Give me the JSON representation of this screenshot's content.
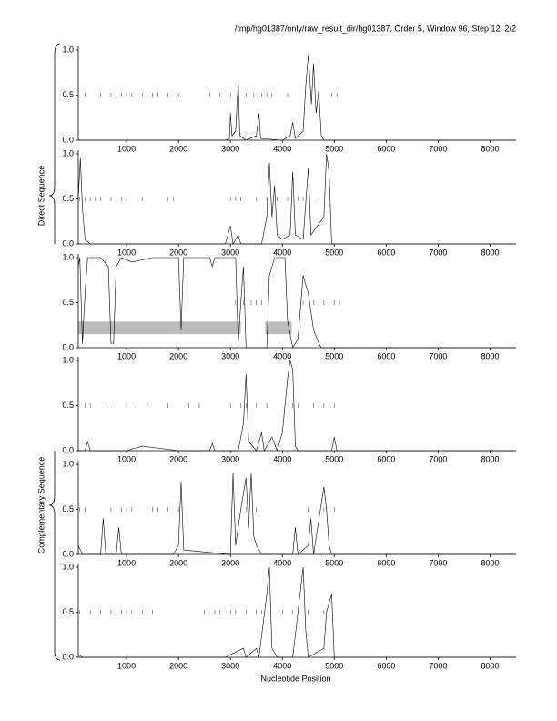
{
  "header": "/tmp/hg01387/only/raw_result_dir/hg01387, Order 5, Window 96, Step 12, 2/2",
  "groups": [
    {
      "label": "Direct Sequence"
    },
    {
      "label": "Complementary Sequence"
    }
  ],
  "x_label": "Nucleotide Position",
  "chart_data": [
    {
      "type": "line",
      "color": "#000000",
      "xlim": [
        70,
        8500
      ],
      "ylim": [
        0,
        1
      ],
      "xticks": [
        1000,
        2000,
        3000,
        4000,
        5000,
        6000,
        7000,
        8000
      ],
      "yticks": [
        {
          "value": 0,
          "label": "0.0"
        },
        {
          "value": 0.5,
          "label": "0.5"
        },
        {
          "value": 1,
          "label": "1.0"
        }
      ],
      "x": [
        70,
        500,
        1000,
        2000,
        2900,
        2980,
        3000,
        3030,
        3100,
        3150,
        3180,
        3300,
        3500,
        3550,
        3580,
        4000,
        4150,
        4200,
        4250,
        4400,
        4450,
        4500,
        4560,
        4600,
        4650,
        4700,
        4750,
        4800,
        5000,
        8500
      ],
      "values": [
        0,
        0,
        0,
        0,
        0,
        0.02,
        0.3,
        0.05,
        0.1,
        0.65,
        0.05,
        0,
        0.05,
        0.3,
        0.02,
        0,
        0.05,
        0.2,
        0.02,
        0.1,
        0.6,
        0.95,
        0.4,
        0.85,
        0.3,
        0.55,
        0.05,
        0,
        0,
        0
      ],
      "codons": [
        70,
        200,
        500,
        700,
        800,
        900,
        1000,
        1100,
        1300,
        1500,
        1600,
        1800,
        2000,
        2600,
        2800,
        3000,
        3300,
        3450,
        3600,
        3700,
        3800,
        4100,
        4950,
        5050
      ]
    },
    {
      "type": "line",
      "color": "#000000",
      "xlim": [
        70,
        8500
      ],
      "ylim": [
        0,
        1
      ],
      "xticks": [
        1000,
        2000,
        3000,
        4000,
        5000,
        6000,
        7000,
        8000
      ],
      "yticks": [
        {
          "value": 0,
          "label": "0.0"
        },
        {
          "value": 0.5,
          "label": "0.5"
        },
        {
          "value": 1,
          "label": "1.0"
        }
      ],
      "x": [
        70,
        110,
        150,
        200,
        300,
        1000,
        2900,
        3000,
        3050,
        3150,
        3200,
        3600,
        3700,
        3750,
        3800,
        3850,
        3900,
        4000,
        4150,
        4200,
        4250,
        4400,
        4500,
        4550,
        4800,
        4850,
        4900,
        4950,
        8500
      ],
      "values": [
        0.5,
        0.95,
        0.4,
        0.05,
        0,
        0,
        0,
        0.2,
        0,
        0.1,
        0,
        0,
        0.3,
        0.9,
        0.3,
        0.65,
        0.1,
        0.05,
        0.1,
        0.8,
        0.1,
        0.05,
        0.85,
        0.1,
        0.3,
        1.0,
        0.8,
        0,
        0
      ],
      "codons": [
        100,
        200,
        300,
        400,
        500,
        700,
        900,
        1000,
        1300,
        1800,
        1900,
        3000,
        3100,
        3200,
        3500,
        3700,
        3900,
        4100,
        4300,
        4400,
        4700
      ]
    },
    {
      "type": "line",
      "color": "#000000",
      "xlim": [
        70,
        8500
      ],
      "ylim": [
        0,
        1
      ],
      "xticks": [
        1000,
        2000,
        3000,
        4000,
        5000,
        6000,
        7000,
        8000
      ],
      "yticks": [
        {
          "value": 0,
          "label": "0.0"
        },
        {
          "value": 0.5,
          "label": "0.5"
        },
        {
          "value": 1,
          "label": "1.0"
        }
      ],
      "x": [
        70,
        100,
        150,
        200,
        250,
        500,
        650,
        700,
        750,
        800,
        900,
        1100,
        1500,
        2000,
        2050,
        2100,
        2600,
        2650,
        2700,
        3100,
        3150,
        3200,
        3250,
        3300,
        3700,
        3750,
        3850,
        4050,
        4100,
        4200,
        4300,
        4400,
        4500,
        4600,
        4700,
        4750,
        8500
      ],
      "values": [
        0.9,
        1.0,
        0.05,
        0.6,
        1.0,
        1.0,
        0.9,
        0.05,
        0.05,
        0.9,
        1.0,
        0.95,
        1.0,
        1.0,
        0.2,
        1.0,
        1.0,
        0.9,
        1.0,
        1.0,
        0.05,
        0.5,
        0.9,
        0,
        0,
        0.8,
        1.0,
        1.0,
        0.3,
        0,
        0.1,
        0.8,
        0.6,
        0.2,
        0.05,
        0,
        0
      ],
      "codons": [
        3100,
        3250,
        3400,
        3500,
        3600,
        4400,
        4600,
        4800,
        5000,
        5100
      ],
      "regions": [
        [
          70,
          3200
        ],
        [
          3670,
          4180
        ]
      ]
    },
    {
      "type": "line",
      "color": "#000000",
      "xlim": [
        70,
        8500
      ],
      "ylim": [
        0,
        1
      ],
      "xticks": [
        1000,
        2000,
        3000,
        4000,
        5000,
        6000,
        7000,
        8000
      ],
      "yticks": [
        {
          "value": 0,
          "label": "0.0"
        },
        {
          "value": 0.5,
          "label": "0.5"
        },
        {
          "value": 1,
          "label": "1.0"
        }
      ],
      "x": [
        70,
        200,
        250,
        300,
        1000,
        1300,
        2000,
        2600,
        2650,
        2700,
        3150,
        3250,
        3300,
        3350,
        3500,
        3600,
        3650,
        3800,
        3900,
        4000,
        4100,
        4150,
        4200,
        4250,
        4300,
        4950,
        5000,
        5050,
        8500
      ],
      "values": [
        0,
        0,
        0.1,
        0,
        0,
        0.05,
        0,
        0,
        0.08,
        0,
        0,
        0.3,
        0.85,
        0.1,
        0,
        0.2,
        0,
        0.15,
        0,
        0.2,
        0.8,
        1.0,
        0.9,
        0.05,
        0,
        0,
        0.15,
        0,
        0
      ],
      "codons": [
        200,
        300,
        600,
        800,
        1000,
        1200,
        1400,
        1800,
        2200,
        2400,
        3000,
        3200,
        3300,
        3500,
        3700,
        4200,
        4300,
        4600,
        4800,
        4900,
        5000
      ]
    },
    {
      "type": "line",
      "color": "#000000",
      "xlim": [
        70,
        8500
      ],
      "ylim": [
        0,
        1
      ],
      "xticks": [
        1000,
        2000,
        3000,
        4000,
        5000,
        6000,
        7000,
        8000
      ],
      "yticks": [
        {
          "value": 0,
          "label": "0.0"
        },
        {
          "value": 0.5,
          "label": "0.5"
        },
        {
          "value": 1,
          "label": "1.0"
        }
      ],
      "x": [
        70,
        150,
        500,
        550,
        600,
        800,
        850,
        900,
        1900,
        2000,
        2050,
        2100,
        3000,
        3050,
        3100,
        3200,
        3300,
        3350,
        3400,
        3450,
        3500,
        3600,
        4200,
        4250,
        4300,
        4500,
        4550,
        4600,
        4800,
        4850,
        4900,
        4950,
        8500
      ],
      "values": [
        0.1,
        0,
        0,
        0.4,
        0,
        0,
        0.3,
        0,
        0,
        0.1,
        0.8,
        0.05,
        0,
        0.9,
        0.1,
        0.5,
        0.85,
        0.3,
        0.9,
        0.2,
        0.1,
        0,
        0,
        0.3,
        0,
        0.1,
        0.4,
        0,
        0.75,
        0.5,
        0.1,
        0,
        0
      ],
      "codons": [
        100,
        200,
        700,
        900,
        1000,
        1100,
        1500,
        1600,
        1800,
        2000,
        3300,
        3500,
        4500,
        4800,
        4850,
        4900,
        5000
      ]
    },
    {
      "type": "line",
      "color": "#000000",
      "xlim": [
        70,
        8500
      ],
      "ylim": [
        0,
        1
      ],
      "xticks": [
        1000,
        2000,
        3000,
        4000,
        5000,
        6000,
        7000,
        8000
      ],
      "yticks": [
        {
          "value": 0,
          "label": "0.0"
        },
        {
          "value": 0.5,
          "label": "0.5"
        },
        {
          "value": 1,
          "label": "1.0"
        }
      ],
      "x": [
        70,
        150,
        2900,
        3250,
        3300,
        3500,
        3550,
        3700,
        3750,
        3800,
        3900,
        4200,
        4300,
        4400,
        4450,
        4500,
        4800,
        4850,
        4950,
        5000,
        8500
      ],
      "values": [
        0.03,
        0,
        0,
        0.1,
        0,
        0.1,
        0,
        0.7,
        1.0,
        0.1,
        0,
        0,
        0.5,
        1.0,
        0.3,
        0,
        0.1,
        0.5,
        0.7,
        0,
        0
      ],
      "codons": [
        100,
        300,
        500,
        700,
        800,
        900,
        1000,
        1100,
        1300,
        1500,
        2500,
        2700,
        2800,
        3000,
        3100,
        3300,
        3500,
        3600,
        4000,
        4200,
        4500,
        4800,
        4900
      ]
    }
  ]
}
